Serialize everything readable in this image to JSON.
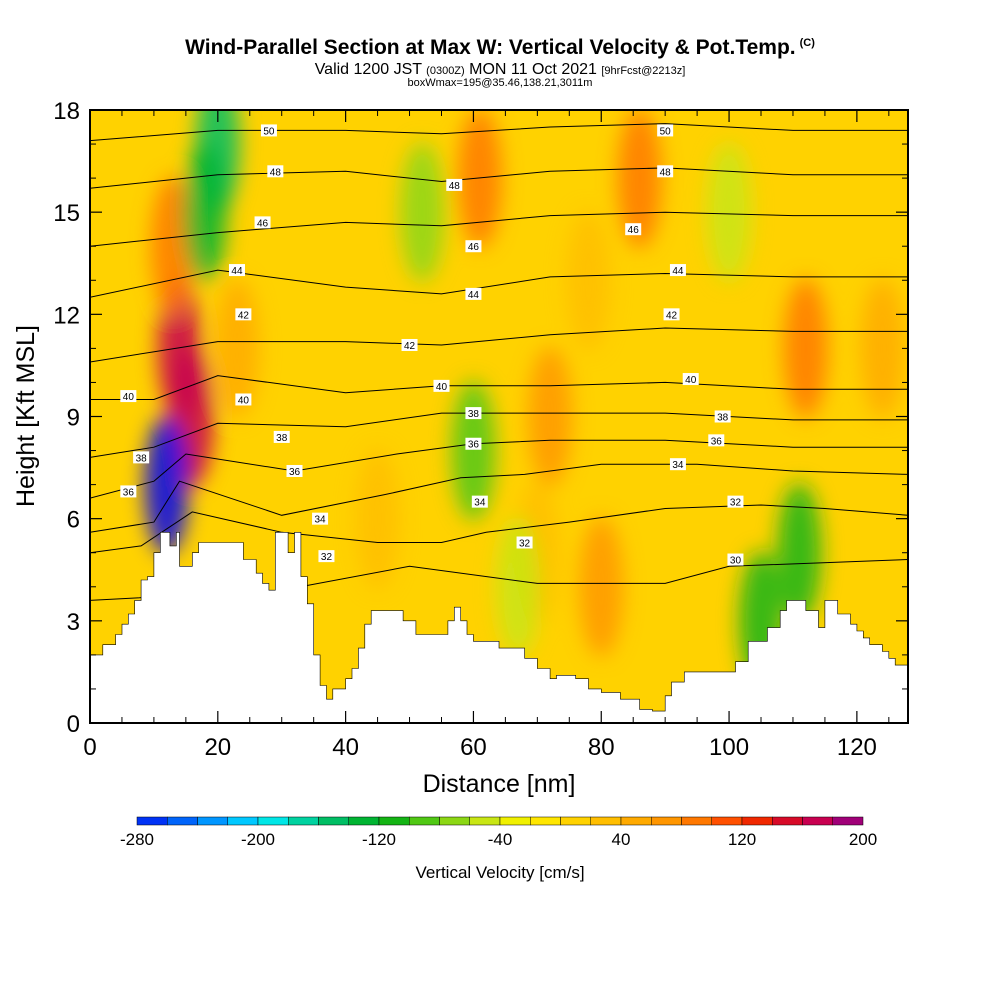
{
  "header": {
    "title": "Wind-Parallel Section at Max W: Vertical Velocity & Pot.Temp.",
    "copyright": "(C)",
    "valid_prefix": "Valid 1200 JST",
    "valid_utc": "(0300Z)",
    "valid_date": "MON 11 Oct 2021",
    "forecast": "[9hrFcst@2213z]",
    "box_info": "boxWmax=195@35.46,138.21,3011m"
  },
  "chart_data": {
    "type": "heatmap",
    "xlabel": "Distance [nm]",
    "ylabel": "Height [Kft MSL]",
    "xlim": [
      0,
      128
    ],
    "ylim": [
      0,
      18
    ],
    "xticks": [
      0,
      20,
      40,
      60,
      80,
      100,
      120
    ],
    "yticks": [
      0,
      3,
      6,
      9,
      12,
      15,
      18
    ],
    "colorbar": {
      "label": "Vertical Velocity [cm/s]",
      "min": -280,
      "max": 200,
      "step": 20,
      "tick_labels": [
        -280,
        -200,
        -120,
        -40,
        40,
        120,
        200
      ],
      "colors": [
        "#0000f0",
        "#0032f5",
        "#0064fa",
        "#0096ff",
        "#00c8ff",
        "#00e6e6",
        "#00d2a0",
        "#00be64",
        "#00b432",
        "#14b414",
        "#50c814",
        "#8cd714",
        "#c8e614",
        "#f0f000",
        "#ffe600",
        "#ffd200",
        "#ffbe00",
        "#ffaa00",
        "#ff9600",
        "#ff7800",
        "#ff5000",
        "#f02800",
        "#d70a28",
        "#c80050",
        "#a00078",
        "#6e00a0"
      ]
    },
    "terrain": [
      [
        0,
        2.0
      ],
      [
        2,
        2.0
      ],
      [
        2,
        2.3
      ],
      [
        4,
        2.3
      ],
      [
        4,
        2.6
      ],
      [
        5,
        2.6
      ],
      [
        5,
        2.9
      ],
      [
        6,
        2.9
      ],
      [
        6,
        3.2
      ],
      [
        7,
        3.2
      ],
      [
        7,
        3.6
      ],
      [
        8,
        3.6
      ],
      [
        8,
        4.2
      ],
      [
        9,
        4.2
      ],
      [
        9,
        4.3
      ],
      [
        10,
        4.3
      ],
      [
        10,
        5
      ],
      [
        11,
        5
      ],
      [
        11,
        5.6
      ],
      [
        12.5,
        5.6
      ],
      [
        12.5,
        5.2
      ],
      [
        13.5,
        5.2
      ],
      [
        13.5,
        5.6
      ],
      [
        14,
        5.6
      ],
      [
        14,
        4.6
      ],
      [
        16,
        4.6
      ],
      [
        16,
        5.0
      ],
      [
        17,
        5.0
      ],
      [
        17,
        5.3
      ],
      [
        24,
        5.3
      ],
      [
        24,
        4.8
      ],
      [
        26,
        4.8
      ],
      [
        26,
        4.4
      ],
      [
        27,
        4.4
      ],
      [
        27,
        4.1
      ],
      [
        28,
        4.1
      ],
      [
        28,
        3.9
      ],
      [
        29,
        3.9
      ],
      [
        29,
        5.6
      ],
      [
        31,
        5.6
      ],
      [
        31,
        5.0
      ],
      [
        32,
        5.0
      ],
      [
        32,
        5.6
      ],
      [
        33,
        5.6
      ],
      [
        33,
        4.3
      ],
      [
        34,
        4.3
      ],
      [
        34,
        3.5
      ],
      [
        35,
        3.5
      ],
      [
        35,
        2.0
      ],
      [
        36,
        2.0
      ],
      [
        36,
        1.1
      ],
      [
        37,
        1.1
      ],
      [
        37,
        0.7
      ],
      [
        38,
        0.7
      ],
      [
        38,
        1.0
      ],
      [
        40,
        1.0
      ],
      [
        40,
        1.3
      ],
      [
        41,
        1.3
      ],
      [
        41,
        1.6
      ],
      [
        42,
        1.6
      ],
      [
        42,
        2.2
      ],
      [
        43,
        2.2
      ],
      [
        43,
        2.9
      ],
      [
        44,
        2.9
      ],
      [
        44,
        3.3
      ],
      [
        49,
        3.3
      ],
      [
        49,
        3.0
      ],
      [
        51,
        3.0
      ],
      [
        51,
        2.6
      ],
      [
        56,
        2.6
      ],
      [
        56,
        3.0
      ],
      [
        57,
        3.0
      ],
      [
        57,
        3.4
      ],
      [
        58,
        3.4
      ],
      [
        58,
        3.0
      ],
      [
        59,
        3.0
      ],
      [
        59,
        2.6
      ],
      [
        60,
        2.6
      ],
      [
        60,
        2.4
      ],
      [
        64,
        2.4
      ],
      [
        64,
        2.2
      ],
      [
        68,
        2.2
      ],
      [
        68,
        1.9
      ],
      [
        70,
        1.9
      ],
      [
        70,
        1.6
      ],
      [
        72,
        1.6
      ],
      [
        72,
        1.3
      ],
      [
        73,
        1.3
      ],
      [
        73,
        1.4
      ],
      [
        76,
        1.4
      ],
      [
        76,
        1.3
      ],
      [
        78,
        1.3
      ],
      [
        78,
        1.0
      ],
      [
        80,
        1.0
      ],
      [
        80,
        0.9
      ],
      [
        83,
        0.9
      ],
      [
        83,
        0.7
      ],
      [
        86,
        0.7
      ],
      [
        86,
        0.4
      ],
      [
        88,
        0.4
      ],
      [
        88,
        0.35
      ],
      [
        90,
        0.35
      ],
      [
        90,
        0.8
      ],
      [
        91,
        0.8
      ],
      [
        91,
        1.2
      ],
      [
        93,
        1.2
      ],
      [
        93,
        1.5
      ],
      [
        101,
        1.5
      ],
      [
        101,
        1.8
      ],
      [
        103,
        1.8
      ],
      [
        103,
        2.4
      ],
      [
        106,
        2.4
      ],
      [
        106,
        2.8
      ],
      [
        108,
        2.8
      ],
      [
        108,
        3.3
      ],
      [
        109,
        3.3
      ],
      [
        109,
        3.6
      ],
      [
        112,
        3.6
      ],
      [
        112,
        3.3
      ],
      [
        114,
        3.3
      ],
      [
        114,
        2.8
      ],
      [
        115,
        2.8
      ],
      [
        115,
        3.6
      ],
      [
        117,
        3.6
      ],
      [
        117,
        3.2
      ],
      [
        119,
        3.2
      ],
      [
        119,
        2.9
      ],
      [
        120,
        2.9
      ],
      [
        120,
        2.7
      ],
      [
        121,
        2.7
      ],
      [
        121,
        2.5
      ],
      [
        122,
        2.5
      ],
      [
        122,
        2.3
      ],
      [
        124,
        2.3
      ],
      [
        124,
        2.1
      ],
      [
        125,
        2.1
      ],
      [
        125,
        1.9
      ],
      [
        126,
        1.9
      ],
      [
        126,
        1.7
      ],
      [
        128,
        1.7
      ],
      [
        128,
        0
      ],
      [
        0,
        0
      ]
    ],
    "vertical_velocity_cells": [
      {
        "x": 14,
        "z": 11,
        "w": 195
      },
      {
        "x": 16,
        "z": 9,
        "w": 190
      },
      {
        "x": 12,
        "z": 7,
        "w": -280
      },
      {
        "x": 13,
        "z": 14,
        "w": 100
      },
      {
        "x": 20,
        "z": 17,
        "w": -140
      },
      {
        "x": 18,
        "z": 15,
        "w": -120
      },
      {
        "x": 23,
        "z": 11,
        "w": 60
      },
      {
        "x": 61,
        "z": 16,
        "w": 100
      },
      {
        "x": 60,
        "z": 8,
        "w": -80
      },
      {
        "x": 52,
        "z": 15,
        "w": -60
      },
      {
        "x": 72,
        "z": 9,
        "w": 80
      },
      {
        "x": 70,
        "z": 5,
        "w": 40
      },
      {
        "x": 80,
        "z": 4,
        "w": 90
      },
      {
        "x": 86,
        "z": 16,
        "w": 110
      },
      {
        "x": 78,
        "z": 13,
        "w": 50
      },
      {
        "x": 100,
        "z": 15,
        "w": -30
      },
      {
        "x": 112,
        "z": 11,
        "w": 110
      },
      {
        "x": 111,
        "z": 5,
        "w": -100
      },
      {
        "x": 105,
        "z": 3,
        "w": -90
      },
      {
        "x": 124,
        "z": 11,
        "w": 60
      },
      {
        "x": 45,
        "z": 6,
        "w": 50
      },
      {
        "x": 67,
        "z": 4,
        "w": -40
      }
    ],
    "theta_contours": [
      {
        "label": "30",
        "pts": [
          [
            0,
            3.6
          ],
          [
            30,
            3.9
          ],
          [
            50,
            4.6
          ],
          [
            70,
            4.1
          ],
          [
            90,
            4.1
          ],
          [
            100,
            4.6
          ],
          [
            128,
            4.8
          ]
        ],
        "label_at": [
          101,
          4.8
        ]
      },
      {
        "label": "32",
        "pts": [
          [
            0,
            5.0
          ],
          [
            8,
            5.2
          ],
          [
            16,
            6.2
          ],
          [
            30,
            5.6
          ],
          [
            45,
            5.3
          ],
          [
            55,
            5.3
          ],
          [
            62,
            5.6
          ],
          [
            75,
            5.9
          ],
          [
            90,
            6.3
          ],
          [
            105,
            6.4
          ],
          [
            115,
            6.3
          ],
          [
            128,
            6.1
          ]
        ],
        "label_at": [
          37,
          4.9
        ],
        "label_at2": [
          68,
          5.3
        ],
        "label_at3": [
          101,
          6.5
        ]
      },
      {
        "label": "34",
        "pts": [
          [
            0,
            5.6
          ],
          [
            10,
            5.9
          ],
          [
            14,
            7.1
          ],
          [
            30,
            6.1
          ],
          [
            46,
            6.7
          ],
          [
            58,
            7.2
          ],
          [
            68,
            7.3
          ],
          [
            80,
            7.6
          ],
          [
            95,
            7.6
          ],
          [
            110,
            7.4
          ],
          [
            128,
            7.3
          ]
        ],
        "label_at": [
          92,
          7.6
        ],
        "label_at2": [
          36,
          6.0
        ],
        "label_at3": [
          61,
          6.5
        ]
      },
      {
        "label": "36",
        "pts": [
          [
            0,
            6.6
          ],
          [
            10,
            7.1
          ],
          [
            15,
            7.9
          ],
          [
            32,
            7.4
          ],
          [
            48,
            7.9
          ],
          [
            60,
            8.2
          ],
          [
            72,
            8.3
          ],
          [
            90,
            8.3
          ],
          [
            110,
            8.1
          ],
          [
            128,
            8.1
          ]
        ],
        "label_at": [
          98,
          8.3
        ],
        "label_at2": [
          32,
          7.4
        ],
        "label_at3": [
          6,
          6.8
        ],
        "label_at4": [
          60,
          8.2
        ]
      },
      {
        "label": "38",
        "pts": [
          [
            0,
            7.8
          ],
          [
            10,
            8.1
          ],
          [
            20,
            8.8
          ],
          [
            40,
            8.7
          ],
          [
            55,
            9.1
          ],
          [
            72,
            9.1
          ],
          [
            90,
            9.1
          ],
          [
            110,
            8.9
          ],
          [
            128,
            8.9
          ]
        ],
        "label_at": [
          99,
          9.0
        ],
        "label_at2": [
          30,
          8.4
        ],
        "label_at3": [
          8,
          7.8
        ],
        "label_at4": [
          60,
          9.1
        ]
      },
      {
        "label": "40",
        "pts": [
          [
            0,
            9.5
          ],
          [
            10,
            9.5
          ],
          [
            20,
            10.2
          ],
          [
            40,
            9.7
          ],
          [
            55,
            9.9
          ],
          [
            72,
            9.9
          ],
          [
            90,
            10.0
          ],
          [
            110,
            9.8
          ],
          [
            128,
            9.8
          ]
        ],
        "label_at": [
          94,
          10.1
        ],
        "label_at2": [
          55,
          9.9
        ],
        "label_at3": [
          24,
          9.5
        ],
        "label_at4": [
          6,
          9.6
        ]
      },
      {
        "label": "42",
        "pts": [
          [
            0,
            10.6
          ],
          [
            20,
            11.2
          ],
          [
            40,
            11.2
          ],
          [
            55,
            11.1
          ],
          [
            72,
            11.4
          ],
          [
            90,
            11.6
          ],
          [
            110,
            11.5
          ],
          [
            128,
            11.5
          ]
        ],
        "label_at": [
          50,
          11.1
        ],
        "label_at2": [
          91,
          12.0
        ],
        "label_at3": [
          24,
          12.0
        ]
      },
      {
        "label": "44",
        "pts": [
          [
            0,
            12.5
          ],
          [
            20,
            13.3
          ],
          [
            40,
            12.8
          ],
          [
            55,
            12.6
          ],
          [
            72,
            13.1
          ],
          [
            90,
            13.2
          ],
          [
            110,
            13.1
          ],
          [
            128,
            13.1
          ]
        ],
        "label_at": [
          60,
          12.6
        ],
        "label_at2": [
          92,
          13.3
        ],
        "label_at3": [
          23,
          13.3
        ]
      },
      {
        "label": "46",
        "pts": [
          [
            0,
            14.0
          ],
          [
            20,
            14.4
          ],
          [
            40,
            14.7
          ],
          [
            55,
            14.6
          ],
          [
            72,
            14.9
          ],
          [
            90,
            15.0
          ],
          [
            110,
            14.9
          ],
          [
            128,
            14.9
          ]
        ],
        "label_at": [
          60,
          14.0
        ],
        "label_at2": [
          85,
          14.5
        ],
        "label_at3": [
          27,
          14.7
        ]
      },
      {
        "label": "48",
        "pts": [
          [
            0,
            15.7
          ],
          [
            20,
            16.1
          ],
          [
            40,
            16.2
          ],
          [
            55,
            15.9
          ],
          [
            72,
            16.2
          ],
          [
            90,
            16.3
          ],
          [
            110,
            16.1
          ],
          [
            128,
            16.1
          ]
        ],
        "label_at": [
          57,
          15.8
        ],
        "label_at2": [
          90,
          16.2
        ],
        "label_at3": [
          29,
          16.2
        ]
      },
      {
        "label": "50",
        "pts": [
          [
            0,
            17.1
          ],
          [
            20,
            17.4
          ],
          [
            40,
            17.4
          ],
          [
            55,
            17.3
          ],
          [
            72,
            17.5
          ],
          [
            90,
            17.6
          ],
          [
            110,
            17.4
          ],
          [
            128,
            17.4
          ]
        ],
        "label_at": [
          28,
          17.4
        ],
        "label_at2": [
          90,
          17.4
        ]
      }
    ]
  }
}
